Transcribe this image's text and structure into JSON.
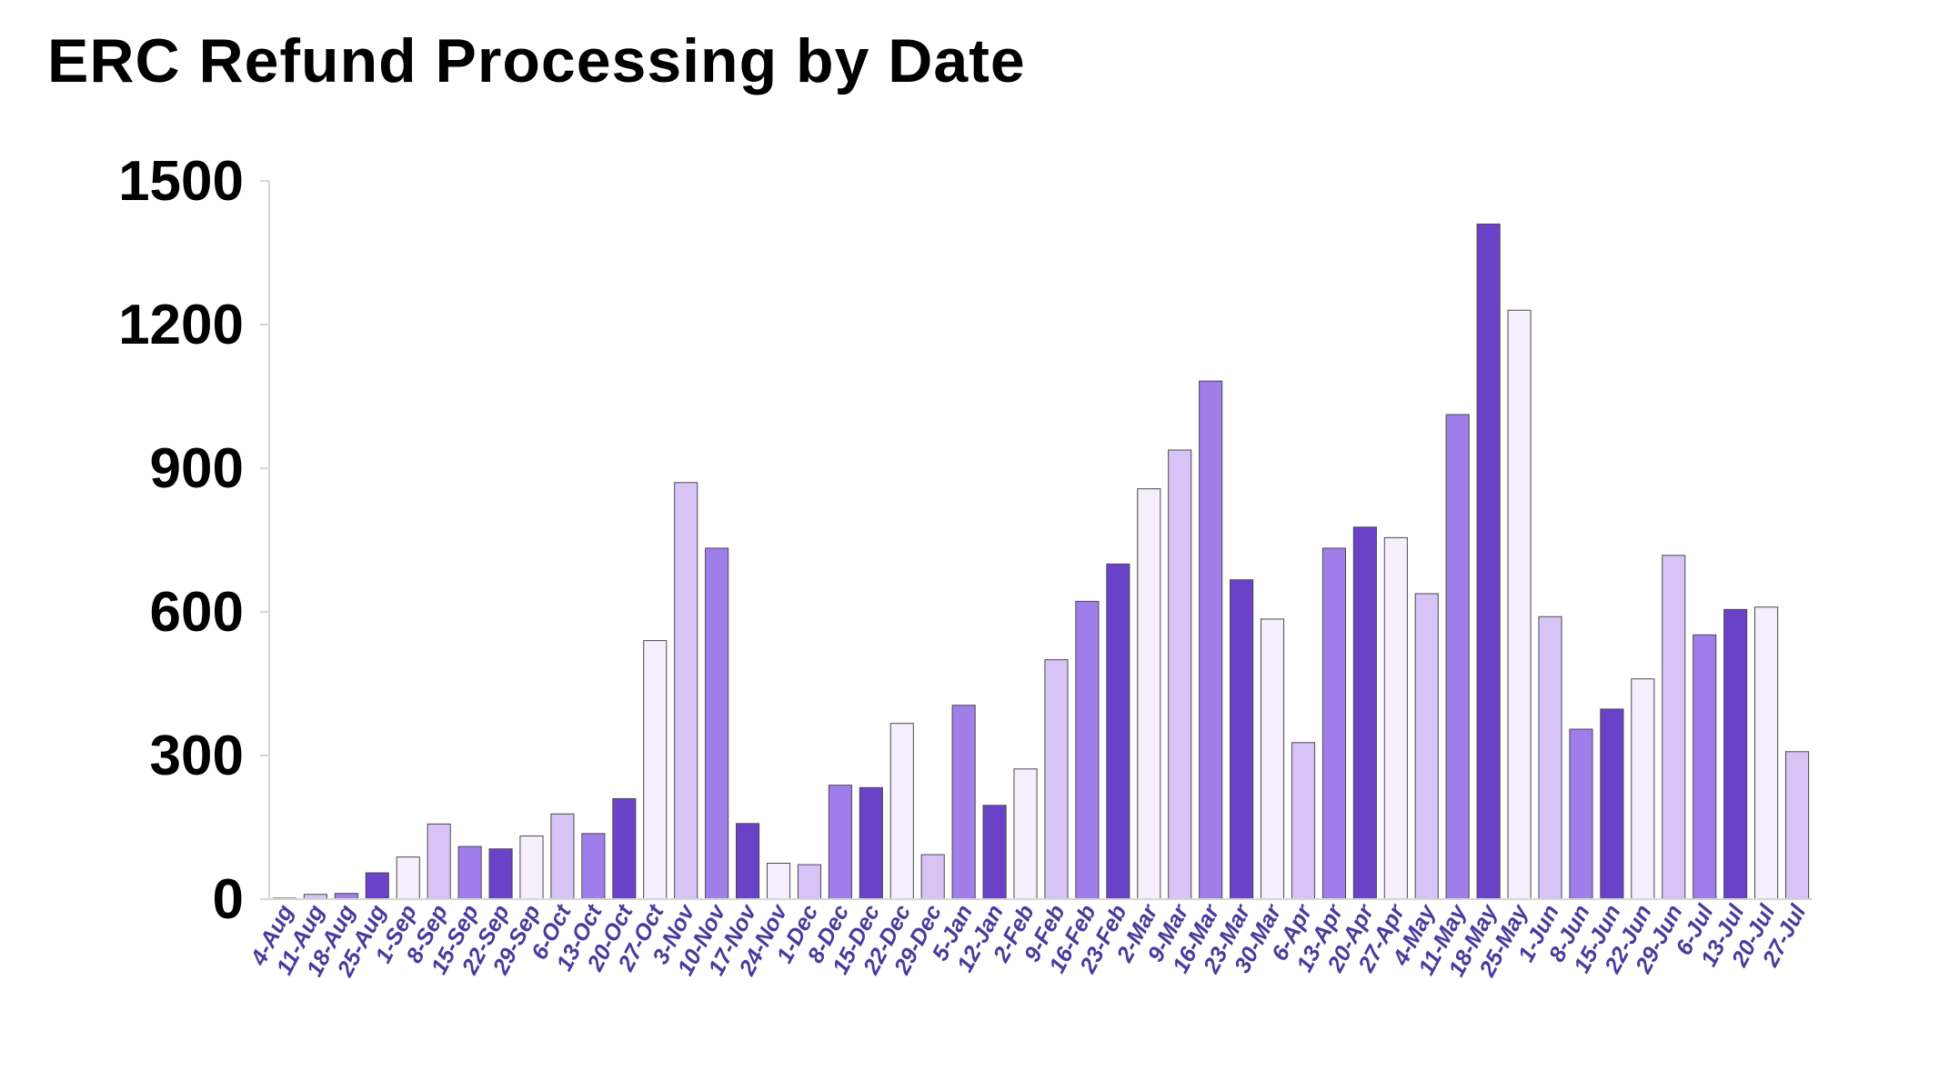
{
  "chart_data": {
    "type": "bar",
    "title": "ERC Refund Processing by Date",
    "xlabel": "",
    "ylabel": "",
    "ylim": [
      0,
      1500
    ],
    "yticks": [
      0,
      300,
      600,
      900,
      1200,
      1500
    ],
    "grid": false,
    "legend": "none",
    "categories": [
      "4-Aug",
      "11-Aug",
      "18-Aug",
      "25-Aug",
      "1-Sep",
      "8-Sep",
      "15-Sep",
      "22-Sep",
      "29-Sep",
      "6-Oct",
      "13-Oct",
      "20-Oct",
      "27-Oct",
      "3-Nov",
      "10-Nov",
      "17-Nov",
      "24-Nov",
      "1-Dec",
      "8-Dec",
      "15-Dec",
      "22-Dec",
      "29-Dec",
      "5-Jan",
      "12-Jan",
      "2-Feb",
      "9-Feb",
      "16-Feb",
      "23-Feb",
      "2-Mar",
      "9-Mar",
      "16-Mar",
      "23-Mar",
      "30-Mar",
      "6-Apr",
      "13-Apr",
      "20-Apr",
      "27-Apr",
      "4-May",
      "11-May",
      "18-May",
      "25-May",
      "1-Jun",
      "8-Jun",
      "15-Jun",
      "22-Jun",
      "29-Jun",
      "6-Jul",
      "13-Jul",
      "20-Jul",
      "27-Jul"
    ],
    "values": [
      2,
      10,
      12,
      55,
      88,
      157,
      110,
      105,
      132,
      178,
      137,
      210,
      540,
      870,
      733,
      158,
      75,
      72,
      238,
      233,
      367,
      93,
      405,
      196,
      272,
      500,
      622,
      700,
      857,
      938,
      1082,
      667,
      585,
      327,
      733,
      777,
      755,
      638,
      1012,
      1410,
      1230,
      590,
      355,
      397,
      460,
      718,
      552,
      605,
      610,
      308
    ],
    "bar_colors": [
      "#f5eefc",
      "#d8c3f6",
      "#a07eea",
      "#6a42c8"
    ],
    "bar_stroke": "#4a4a4a",
    "x_label_color": "#4b3a9e",
    "axis_color": "#d6d6d6"
  }
}
